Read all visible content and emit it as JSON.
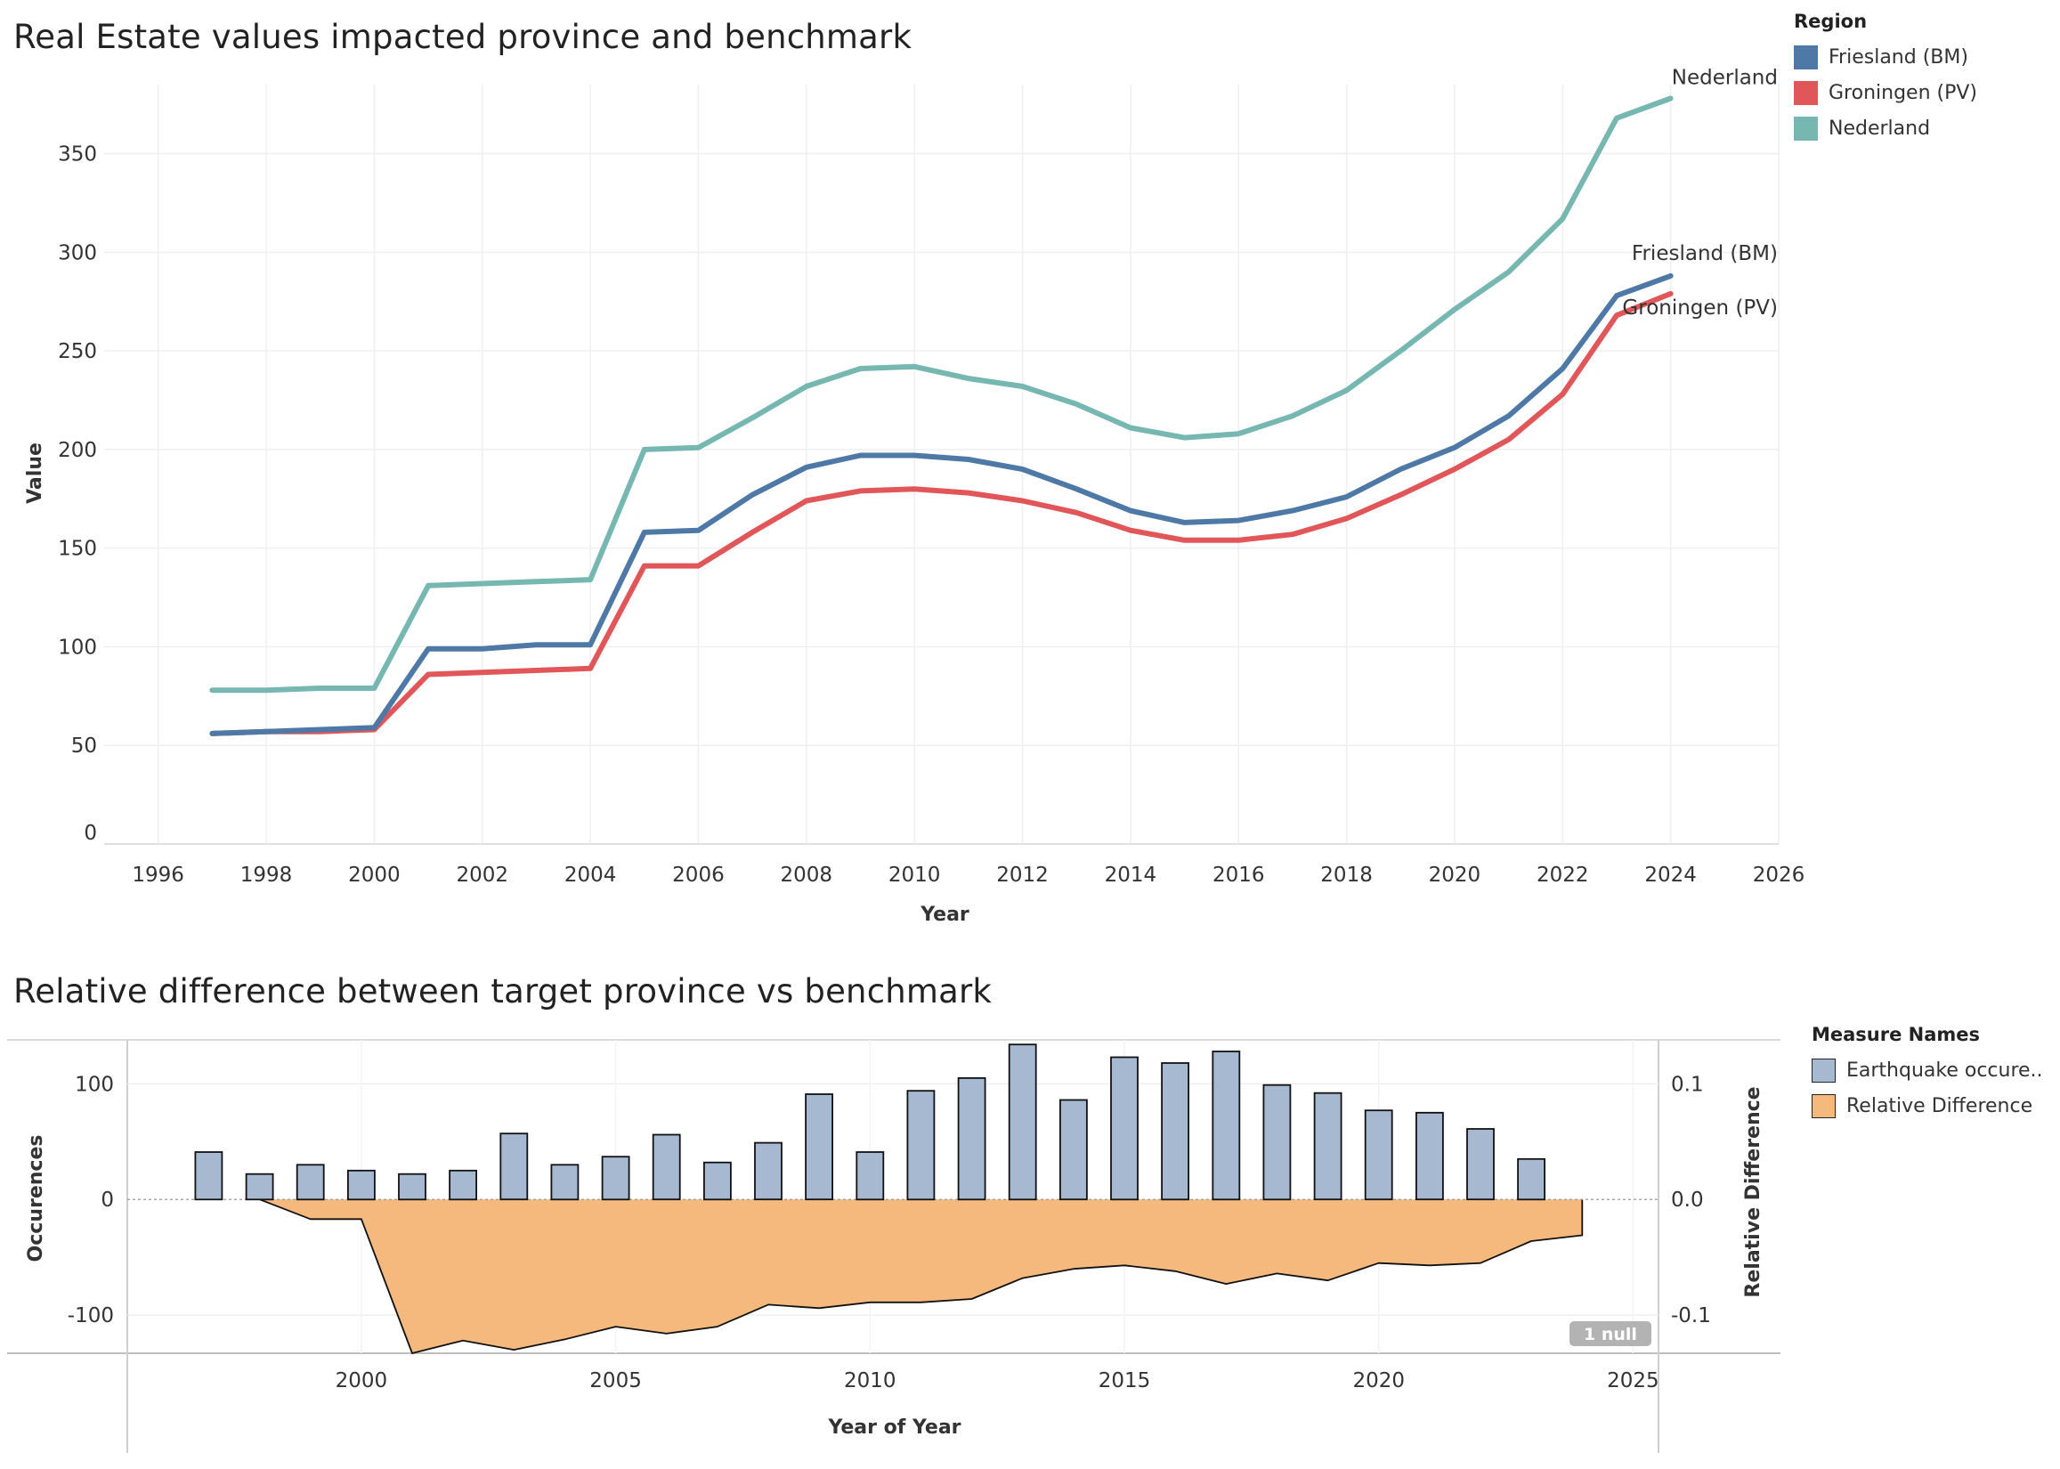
{
  "titles": {
    "top": "Real Estate values impacted province and benchmark",
    "bottom": "Relative difference between target province vs benchmark"
  },
  "legend1": {
    "title": "Region",
    "items": [
      {
        "label": "Friesland (BM)",
        "color": "#4e79a7"
      },
      {
        "label": "Groningen (PV)",
        "color": "#e15759"
      },
      {
        "label": "Nederland",
        "color": "#76b7b2"
      }
    ]
  },
  "legend2": {
    "title": "Measure Names",
    "items": [
      {
        "label": "Earthquake occure..",
        "color": "#a7b9d1"
      },
      {
        "label": "Relative Difference",
        "color": "#f5b97d"
      }
    ]
  },
  "null_badge": "1 null",
  "chart_data": [
    {
      "type": "line",
      "title": "Real Estate values impacted province and benchmark",
      "xlabel": "Year",
      "ylabel": "Value",
      "xlim": [
        1995,
        2026
      ],
      "ylim": [
        0,
        385
      ],
      "xticks": [
        1996,
        1998,
        2000,
        2002,
        2004,
        2006,
        2008,
        2010,
        2012,
        2014,
        2016,
        2018,
        2020,
        2022,
        2024,
        2026
      ],
      "yticks": [
        0,
        50,
        100,
        150,
        200,
        250,
        300,
        350
      ],
      "grid": true,
      "legend_position": "right",
      "x": [
        1997,
        1998,
        1999,
        2000,
        2001,
        2002,
        2003,
        2004,
        2005,
        2006,
        2007,
        2008,
        2009,
        2010,
        2011,
        2012,
        2013,
        2014,
        2015,
        2016,
        2017,
        2018,
        2019,
        2020,
        2021,
        2022,
        2023,
        2024
      ],
      "series": [
        {
          "name": "Friesland (BM)",
          "color": "#4e79a7",
          "values": [
            56,
            57,
            58,
            59,
            99,
            99,
            101,
            101,
            158,
            159,
            177,
            191,
            197,
            197,
            195,
            190,
            180,
            169,
            163,
            164,
            169,
            176,
            190,
            201,
            217,
            241,
            278,
            288
          ]
        },
        {
          "name": "Groningen (PV)",
          "color": "#e15759",
          "values": [
            56,
            57,
            57,
            58,
            86,
            87,
            88,
            89,
            141,
            141,
            158,
            174,
            179,
            180,
            178,
            174,
            168,
            159,
            154,
            154,
            157,
            165,
            177,
            190,
            205,
            228,
            268,
            279
          ]
        },
        {
          "name": "Nederland",
          "color": "#76b7b2",
          "values": [
            78,
            78,
            79,
            79,
            131,
            132,
            133,
            134,
            200,
            201,
            216,
            232,
            241,
            242,
            236,
            232,
            223,
            211,
            206,
            208,
            217,
            230,
            250,
            271,
            290,
            317,
            368,
            378
          ]
        }
      ],
      "line_end_labels": [
        "Nederland",
        "Friesland (BM)",
        "Groningen (PV)"
      ]
    },
    {
      "type": "bar+area",
      "title": "Relative difference between target province vs benchmark",
      "xlabel": "Year of Year",
      "ylabel": "Occurences",
      "y2label": "Relative Difference",
      "xlim": [
        1995.4,
        2025.5
      ],
      "ylim": [
        -133,
        138
      ],
      "y2lim": [
        -0.133,
        0.138
      ],
      "xticks": [
        2000,
        2005,
        2010,
        2015,
        2020,
        2025
      ],
      "yticks": [
        -100,
        0,
        100
      ],
      "y2ticks": [
        "-0.1",
        "0.0",
        "0.1"
      ],
      "x": [
        1997,
        1998,
        1999,
        2000,
        2001,
        2002,
        2003,
        2004,
        2005,
        2006,
        2007,
        2008,
        2009,
        2010,
        2011,
        2012,
        2013,
        2014,
        2015,
        2016,
        2017,
        2018,
        2019,
        2020,
        2021,
        2022,
        2023,
        2024
      ],
      "series": [
        {
          "name": "Earthquake occure..",
          "type": "bar",
          "axis": "left",
          "color": "#a7b9d1",
          "values": [
            41,
            22,
            30,
            25,
            22,
            25,
            57,
            30,
            37,
            56,
            32,
            49,
            91,
            41,
            94,
            105,
            134,
            86,
            123,
            118,
            128,
            99,
            92,
            77,
            75,
            61,
            35,
            null
          ]
        },
        {
          "name": "Relative Difference",
          "type": "area",
          "axis": "right",
          "color": "#f5b97d",
          "values": [
            null,
            0.0,
            -0.017,
            -0.017,
            -0.133,
            -0.122,
            -0.13,
            -0.121,
            -0.11,
            -0.116,
            -0.11,
            -0.091,
            -0.094,
            -0.089,
            -0.089,
            -0.086,
            -0.068,
            -0.06,
            -0.057,
            -0.062,
            -0.073,
            -0.064,
            -0.07,
            -0.055,
            -0.057,
            -0.055,
            -0.036,
            -0.031
          ]
        }
      ]
    }
  ]
}
